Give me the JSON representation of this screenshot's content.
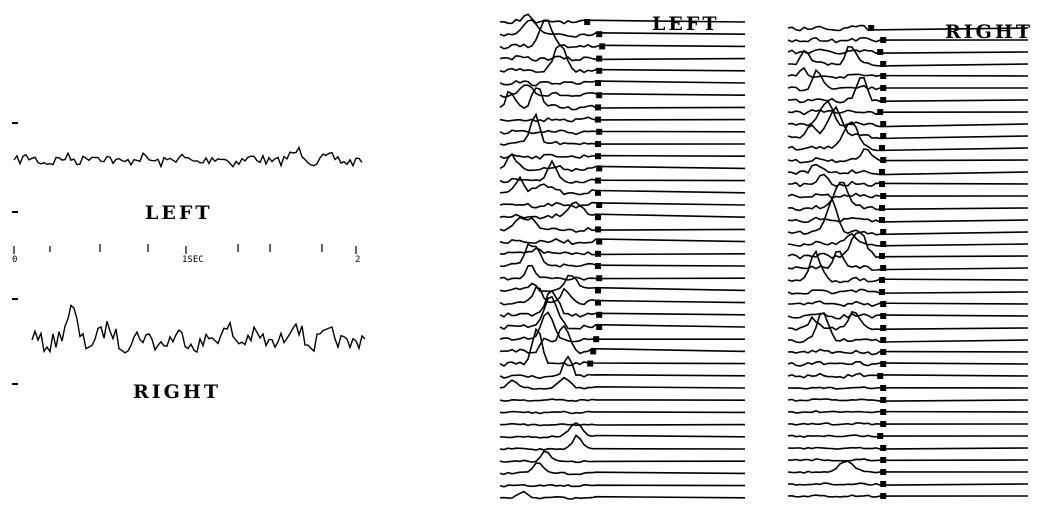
{
  "left_panel": {
    "top_trace_label": "LEFT",
    "bottom_trace_label": "RIGHT",
    "time_axis": {
      "start_label": "0",
      "mid_label": "1SEC",
      "end_label": "2",
      "range_seconds": [
        0,
        2
      ]
    }
  },
  "stack_left": {
    "label": "LEFT"
  },
  "stack_right": {
    "label": "RIGHT"
  },
  "chart_data": [
    {
      "type": "line",
      "title": "",
      "xlabel": "",
      "ylabel": "",
      "xlim": [
        0,
        2
      ],
      "series": [
        {
          "name": "LEFT",
          "shape": "low-amplitude irregular activity"
        },
        {
          "name": "RIGHT",
          "shape": "higher-amplitude irregular activity with early peaks"
        }
      ]
    },
    {
      "type": "line",
      "title": "",
      "series_label": "LEFT",
      "trace_count": 40,
      "marker_offsets": [
        0.1,
        0.3,
        0.35,
        0.3,
        0.3,
        0.28,
        0.3,
        0.28,
        0.28,
        0.3,
        0.28,
        0.28,
        0.3,
        0.28,
        0.28,
        0.3,
        0.28,
        0.28,
        0.3,
        0.28,
        0.28,
        0.3,
        0.28,
        0.28,
        0.3,
        0.3,
        0.25,
        0.2,
        0.15,
        null,
        null,
        null,
        null,
        null,
        null,
        null,
        null,
        null,
        null,
        null
      ]
    },
    {
      "type": "line",
      "title": "",
      "series_label": "RIGHT",
      "trace_count": 40,
      "marker_offsets": [
        0.1,
        0.3,
        0.25,
        0.3,
        0.3,
        0.3,
        0.3,
        0.25,
        0.3,
        0.3,
        0.28,
        0.3,
        0.28,
        0.28,
        0.3,
        0.28,
        0.28,
        0.3,
        0.3,
        0.28,
        0.3,
        0.28,
        0.28,
        0.3,
        0.3,
        0.3,
        0.3,
        0.3,
        0.3,
        0.25,
        0.3,
        0.3,
        0.3,
        0.3,
        0.25,
        0.3,
        0.3,
        0.3,
        0.3,
        0.3
      ]
    }
  ]
}
